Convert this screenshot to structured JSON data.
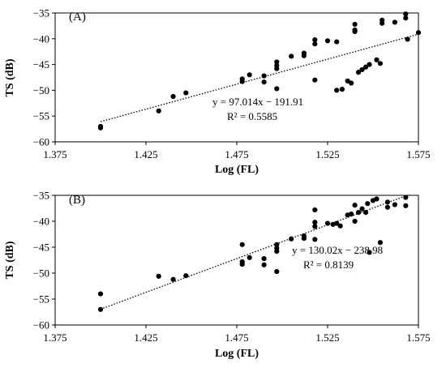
{
  "chart_data": [
    {
      "type": "scatter",
      "panel_label": "(A)",
      "xlabel": "Log (FL)",
      "ylabel": "TS (dB)",
      "xlim": [
        1.375,
        1.575
      ],
      "ylim": [
        -60,
        -35
      ],
      "xticks": [
        "1.375",
        "1.425",
        "1.475",
        "1.525",
        "1.575"
      ],
      "yticks": [
        "-35",
        "-40",
        "-45",
        "-50",
        "-55",
        "-60"
      ],
      "equation": "y = 97.014x − 191.91",
      "r_squared": "R² = 0.5585",
      "trendline": {
        "slope": 97.014,
        "intercept": -191.91,
        "x_range": [
          1.4,
          1.575
        ]
      },
      "points": [
        [
          1.4,
          -57.0
        ],
        [
          1.4,
          -57.3
        ],
        [
          1.432,
          -54.0
        ],
        [
          1.44,
          -51.2
        ],
        [
          1.447,
          -50.5
        ],
        [
          1.478,
          -47.8
        ],
        [
          1.478,
          -48.3
        ],
        [
          1.482,
          -47.0
        ],
        [
          1.49,
          -47.2
        ],
        [
          1.49,
          -48.4
        ],
        [
          1.497,
          -44.5
        ],
        [
          1.497,
          -45.2
        ],
        [
          1.497,
          -45.8
        ],
        [
          1.497,
          -49.7
        ],
        [
          1.505,
          -43.4
        ],
        [
          1.512,
          -42.8
        ],
        [
          1.512,
          -43.3
        ],
        [
          1.518,
          -40.2
        ],
        [
          1.518,
          -41.0
        ],
        [
          1.518,
          -48.0
        ],
        [
          1.525,
          -40.4
        ],
        [
          1.53,
          -40.6
        ],
        [
          1.53,
          -50.0
        ],
        [
          1.533,
          -49.8
        ],
        [
          1.536,
          -48.2
        ],
        [
          1.538,
          -48.6
        ],
        [
          1.54,
          -37.2
        ],
        [
          1.54,
          -38.3
        ],
        [
          1.54,
          -38.6
        ],
        [
          1.542,
          -46.5
        ],
        [
          1.544,
          -46.0
        ],
        [
          1.546,
          -45.5
        ],
        [
          1.548,
          -45.0
        ],
        [
          1.552,
          -44.1
        ],
        [
          1.554,
          -44.8
        ],
        [
          1.555,
          -36.4
        ],
        [
          1.555,
          -37.0
        ],
        [
          1.562,
          -36.8
        ],
        [
          1.568,
          -35.2
        ],
        [
          1.568,
          -36.0
        ],
        [
          1.569,
          -40.1
        ],
        [
          1.575,
          -38.8
        ]
      ]
    },
    {
      "type": "scatter",
      "panel_label": "(B)",
      "xlabel": "Log (FL)",
      "ylabel": "TS (dB)",
      "xlim": [
        1.375,
        1.575
      ],
      "ylim": [
        -60,
        -35
      ],
      "xticks": [
        "1.375",
        "1.425",
        "1.475",
        "1.525",
        "1.575"
      ],
      "yticks": [
        "-35",
        "-40",
        "-45",
        "-50",
        "-55",
        "-60"
      ],
      "equation": "y = 130.02x − 238.98",
      "r_squared": "R² = 0.8139",
      "trendline": {
        "slope": 130.02,
        "intercept": -238.98,
        "x_range": [
          1.4,
          1.57
        ]
      },
      "points": [
        [
          1.4,
          -54.0
        ],
        [
          1.4,
          -57.0
        ],
        [
          1.432,
          -50.6
        ],
        [
          1.44,
          -51.2
        ],
        [
          1.447,
          -50.5
        ],
        [
          1.478,
          -44.5
        ],
        [
          1.478,
          -47.8
        ],
        [
          1.478,
          -48.3
        ],
        [
          1.482,
          -47.0
        ],
        [
          1.49,
          -47.2
        ],
        [
          1.49,
          -48.4
        ],
        [
          1.497,
          -44.5
        ],
        [
          1.497,
          -45.2
        ],
        [
          1.497,
          -45.8
        ],
        [
          1.497,
          -49.7
        ],
        [
          1.505,
          -43.4
        ],
        [
          1.512,
          -42.8
        ],
        [
          1.512,
          -43.3
        ],
        [
          1.518,
          -37.8
        ],
        [
          1.518,
          -40.2
        ],
        [
          1.518,
          -41.0
        ],
        [
          1.518,
          -43.5
        ],
        [
          1.525,
          -40.4
        ],
        [
          1.528,
          -40.6
        ],
        [
          1.53,
          -40.4
        ],
        [
          1.532,
          -40.9
        ],
        [
          1.536,
          -38.8
        ],
        [
          1.538,
          -38.6
        ],
        [
          1.54,
          -36.9
        ],
        [
          1.54,
          -40.0
        ],
        [
          1.542,
          -38.3
        ],
        [
          1.544,
          -37.6
        ],
        [
          1.546,
          -38.3
        ],
        [
          1.547,
          -36.6
        ],
        [
          1.548,
          -46.0
        ],
        [
          1.55,
          -36.0
        ],
        [
          1.552,
          -35.7
        ],
        [
          1.554,
          -44.1
        ],
        [
          1.558,
          -36.3
        ],
        [
          1.558,
          -37.3
        ],
        [
          1.562,
          -36.8
        ],
        [
          1.568,
          -35.4
        ],
        [
          1.568,
          -37.0
        ]
      ]
    }
  ]
}
